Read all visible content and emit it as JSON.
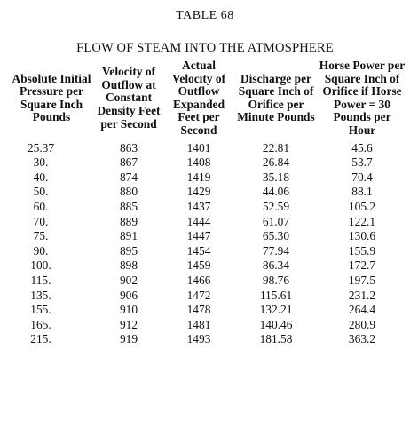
{
  "table_number": "TABLE 68",
  "title": "FLOW OF STEAM INTO THE ATMOSPHERE",
  "headers": [
    "Absolute Initial Pressure per Square Inch Pounds",
    "Velocity of Outflow at Constant Density Feet per Second",
    "Actual Velocity of Outflow Expanded Feet per Second",
    "Discharge per Square Inch of Orifice per Minute Pounds",
    "Horse Power per Square Inch of Orifice if Horse Power = 30 Pounds per Hour"
  ],
  "rows": [
    [
      "25.37",
      "863",
      "1401",
      "22.81",
      "45.6"
    ],
    [
      "30.",
      "867",
      "1408",
      "26.84",
      "53.7"
    ],
    [
      "40.",
      "874",
      "1419",
      "35.18",
      "70.4"
    ],
    [
      "50.",
      "880",
      "1429",
      "44.06",
      "88.1"
    ],
    [
      "60.",
      "885",
      "1437",
      "52.59",
      "105.2"
    ],
    [
      "70.",
      "889",
      "1444",
      "61.07",
      "122.1"
    ],
    [
      "75.",
      "891",
      "1447",
      "65.30",
      "130.6"
    ],
    [
      "90.",
      "895",
      "1454",
      "77.94",
      "155.9"
    ],
    [
      "100.",
      "898",
      "1459",
      "86.34",
      "172.7"
    ],
    [
      "115.",
      "902",
      "1466",
      "98.76",
      "197.5"
    ],
    [
      "135.",
      "906",
      "1472",
      "115.61",
      "231.2"
    ],
    [
      "155.",
      "910",
      "1478",
      "132.21",
      "264.4"
    ],
    [
      "165.",
      "912",
      "1481",
      "140.46",
      "280.9"
    ],
    [
      "215.",
      "919",
      "1493",
      "181.58",
      "363.2"
    ]
  ]
}
